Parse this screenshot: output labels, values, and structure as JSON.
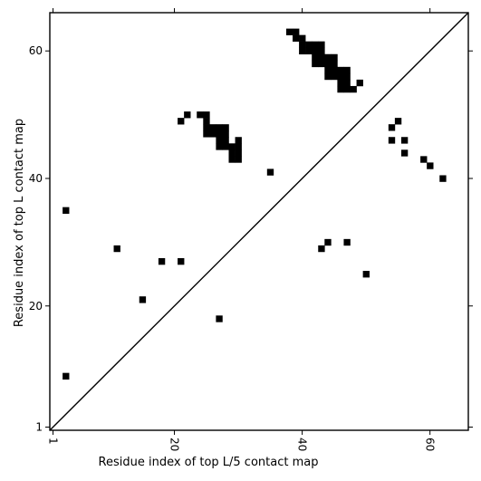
{
  "chart_data": {
    "type": "scatter",
    "title": "",
    "xlabel": "Residue index of top L/5 contact map",
    "ylabel": "Residue index of top L contact map",
    "xlim": [
      0.5,
      66
    ],
    "ylim": [
      0.5,
      66
    ],
    "x_ticks": [
      {
        "value": 1,
        "label": "1"
      },
      {
        "value": 20,
        "label": "20"
      },
      {
        "value": 40,
        "label": "40"
      },
      {
        "value": 60,
        "label": "60"
      }
    ],
    "y_ticks": [
      {
        "value": 1,
        "label": "1"
      },
      {
        "value": 20,
        "label": "20"
      },
      {
        "value": 40,
        "label": "40"
      },
      {
        "value": 60,
        "label": "60"
      }
    ],
    "x_tick_label_rotation": -90,
    "diagonal_line": {
      "from": [
        0.5,
        0.5
      ],
      "to": [
        66,
        66
      ]
    },
    "marker_color": "#000000",
    "upper_triangle_contacts": [
      [
        38,
        63
      ],
      [
        39,
        63
      ],
      [
        39,
        62
      ],
      [
        40,
        62
      ],
      [
        40,
        61
      ],
      [
        41,
        61
      ],
      [
        42,
        61
      ],
      [
        43,
        61
      ],
      [
        40,
        60
      ],
      [
        41,
        60
      ],
      [
        42,
        60
      ],
      [
        43,
        60
      ],
      [
        42,
        59
      ],
      [
        43,
        59
      ],
      [
        44,
        59
      ],
      [
        45,
        59
      ],
      [
        42,
        58
      ],
      [
        43,
        58
      ],
      [
        44,
        58
      ],
      [
        45,
        58
      ],
      [
        44,
        57
      ],
      [
        45,
        57
      ],
      [
        46,
        57
      ],
      [
        47,
        57
      ],
      [
        44,
        56
      ],
      [
        45,
        56
      ],
      [
        46,
        56
      ],
      [
        47,
        56
      ],
      [
        46,
        55
      ],
      [
        47,
        55
      ],
      [
        49,
        55
      ],
      [
        46,
        54
      ],
      [
        47,
        54
      ],
      [
        48,
        54
      ],
      [
        22,
        50
      ],
      [
        24,
        50
      ],
      [
        25,
        50
      ],
      [
        21,
        49
      ],
      [
        25,
        49
      ],
      [
        25,
        48
      ],
      [
        26,
        48
      ],
      [
        27,
        48
      ],
      [
        28,
        48
      ],
      [
        25,
        47
      ],
      [
        26,
        47
      ],
      [
        27,
        47
      ],
      [
        28,
        47
      ],
      [
        27,
        46
      ],
      [
        28,
        46
      ],
      [
        30,
        46
      ],
      [
        27,
        45
      ],
      [
        28,
        45
      ],
      [
        29,
        45
      ],
      [
        30,
        45
      ],
      [
        29,
        44
      ],
      [
        30,
        44
      ],
      [
        29,
        43
      ],
      [
        30,
        43
      ],
      [
        35,
        41
      ]
    ],
    "lower_triangle_contacts": [
      [
        55,
        49
      ],
      [
        54,
        48
      ],
      [
        54,
        46
      ],
      [
        56,
        46
      ],
      [
        56,
        44
      ],
      [
        59,
        43
      ],
      [
        60,
        42
      ],
      [
        62,
        40
      ],
      [
        3,
        35
      ],
      [
        11,
        29
      ],
      [
        43,
        29
      ],
      [
        44,
        30
      ],
      [
        47,
        30
      ],
      [
        18,
        27
      ],
      [
        21,
        27
      ],
      [
        50,
        25
      ],
      [
        15,
        21
      ],
      [
        27,
        18
      ],
      [
        3,
        9
      ]
    ]
  }
}
